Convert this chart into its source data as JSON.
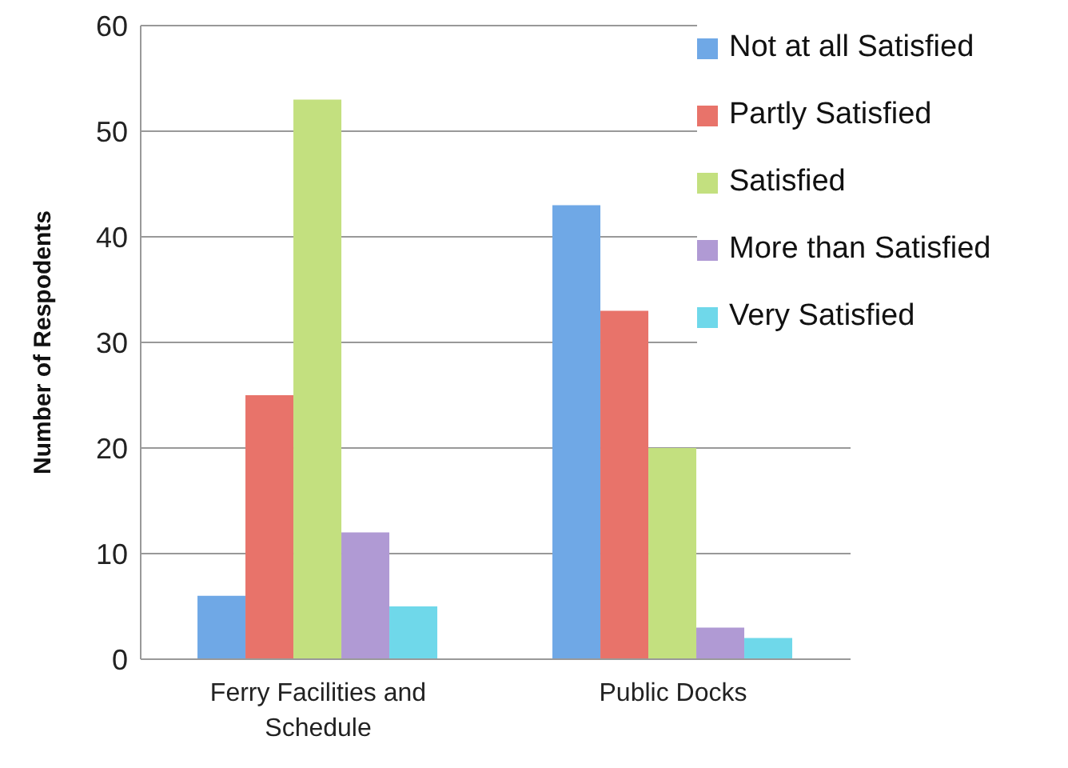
{
  "chart_data": {
    "type": "bar",
    "ylabel": "Number of Respodents",
    "categories": [
      "Ferry Facilities and Schedule",
      "Public Docks"
    ],
    "series": [
      {
        "name": "Not at all Satisfied",
        "color": "#6fa8e6",
        "values": [
          6,
          43
        ]
      },
      {
        "name": "Partly Satisfied",
        "color": "#e8736a",
        "values": [
          25,
          33
        ]
      },
      {
        "name": "Satisfied",
        "color": "#c3e07f",
        "values": [
          53,
          20
        ]
      },
      {
        "name": "More than Satisfied",
        "color": "#b09ad4",
        "values": [
          12,
          3
        ]
      },
      {
        "name": "Very Satisfied",
        "color": "#6fd8ea",
        "values": [
          5,
          2
        ]
      }
    ],
    "ylim": [
      0,
      60
    ],
    "yticks": [
      0,
      10,
      20,
      30,
      40,
      50,
      60
    ],
    "grid": "y",
    "legend": "top right"
  }
}
